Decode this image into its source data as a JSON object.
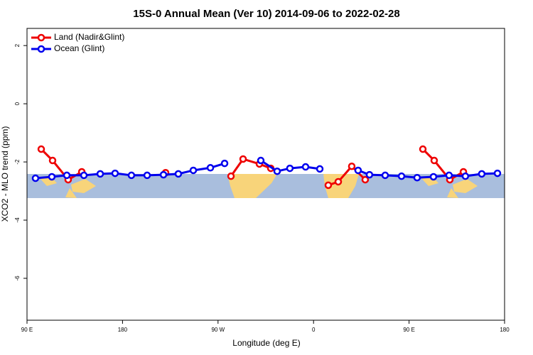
{
  "chart_data": {
    "type": "line",
    "title": "15S-0 Annual Mean (Ver 10)   2014-09-06 to 2022-02-28",
    "x_label": "Longitude (deg E)",
    "y_label": "XCO2 - MLO trend (ppm)",
    "xlim": [
      90,
      540
    ],
    "xticks": [
      {
        "value": 90,
        "label": "90 E"
      },
      180,
      {
        "value": 270,
        "label": "90 W"
      },
      {
        "value": 360,
        "label": "0"
      },
      {
        "value": 450,
        "label": "90 E"
      },
      {
        "value": 540,
        "label": "180"
      }
    ],
    "ylim": [
      -7.44,
      2.59
    ],
    "yticks": [
      -6,
      -4,
      -2,
      0,
      2
    ],
    "legend": "top-left",
    "series": [
      {
        "name": "Land (Nadir&Glint)",
        "color": "#ee0000",
        "x": [
          103.4,
          114.1,
          128.8,
          141.6,
          null,
          220.6,
          null,
          282.2,
          293.6,
          309.0,
          319.7,
          null,
          373.9,
          383.3,
          396.0,
          408.7,
          null,
          463.0,
          473.7,
          488.4,
          501.2
        ],
        "values": [
          -1.56,
          -1.95,
          -2.61,
          -2.34,
          null,
          -2.37,
          null,
          -2.49,
          -1.9,
          -2.07,
          -2.22,
          null,
          -2.8,
          -2.68,
          -2.15,
          -2.61,
          null,
          -1.56,
          -1.95,
          -2.61,
          -2.34
        ]
      },
      {
        "name": "Ocean (Glint)",
        "color": "#0000ee",
        "x": [
          98.0,
          113.4,
          127.5,
          143.6,
          159.0,
          173.0,
          188.4,
          203.2,
          218.6,
          232.6,
          246.7,
          262.8,
          276.2,
          null,
          310.3,
          325.7,
          337.7,
          352.5,
          365.9,
          null,
          402.0,
          412.7,
          427.5,
          442.9,
          457.6,
          473.0,
          487.7,
          503.1,
          518.5,
          533.3
        ],
        "values": [
          -2.56,
          -2.51,
          -2.46,
          -2.46,
          -2.41,
          -2.39,
          -2.46,
          -2.46,
          -2.44,
          -2.41,
          -2.29,
          -2.2,
          -2.05,
          null,
          -1.95,
          -2.32,
          -2.22,
          -2.17,
          -2.24,
          null,
          -2.29,
          -2.44,
          -2.46,
          -2.49,
          -2.54,
          -2.51,
          -2.46,
          -2.49,
          -2.41,
          -2.39
        ]
      }
    ]
  }
}
